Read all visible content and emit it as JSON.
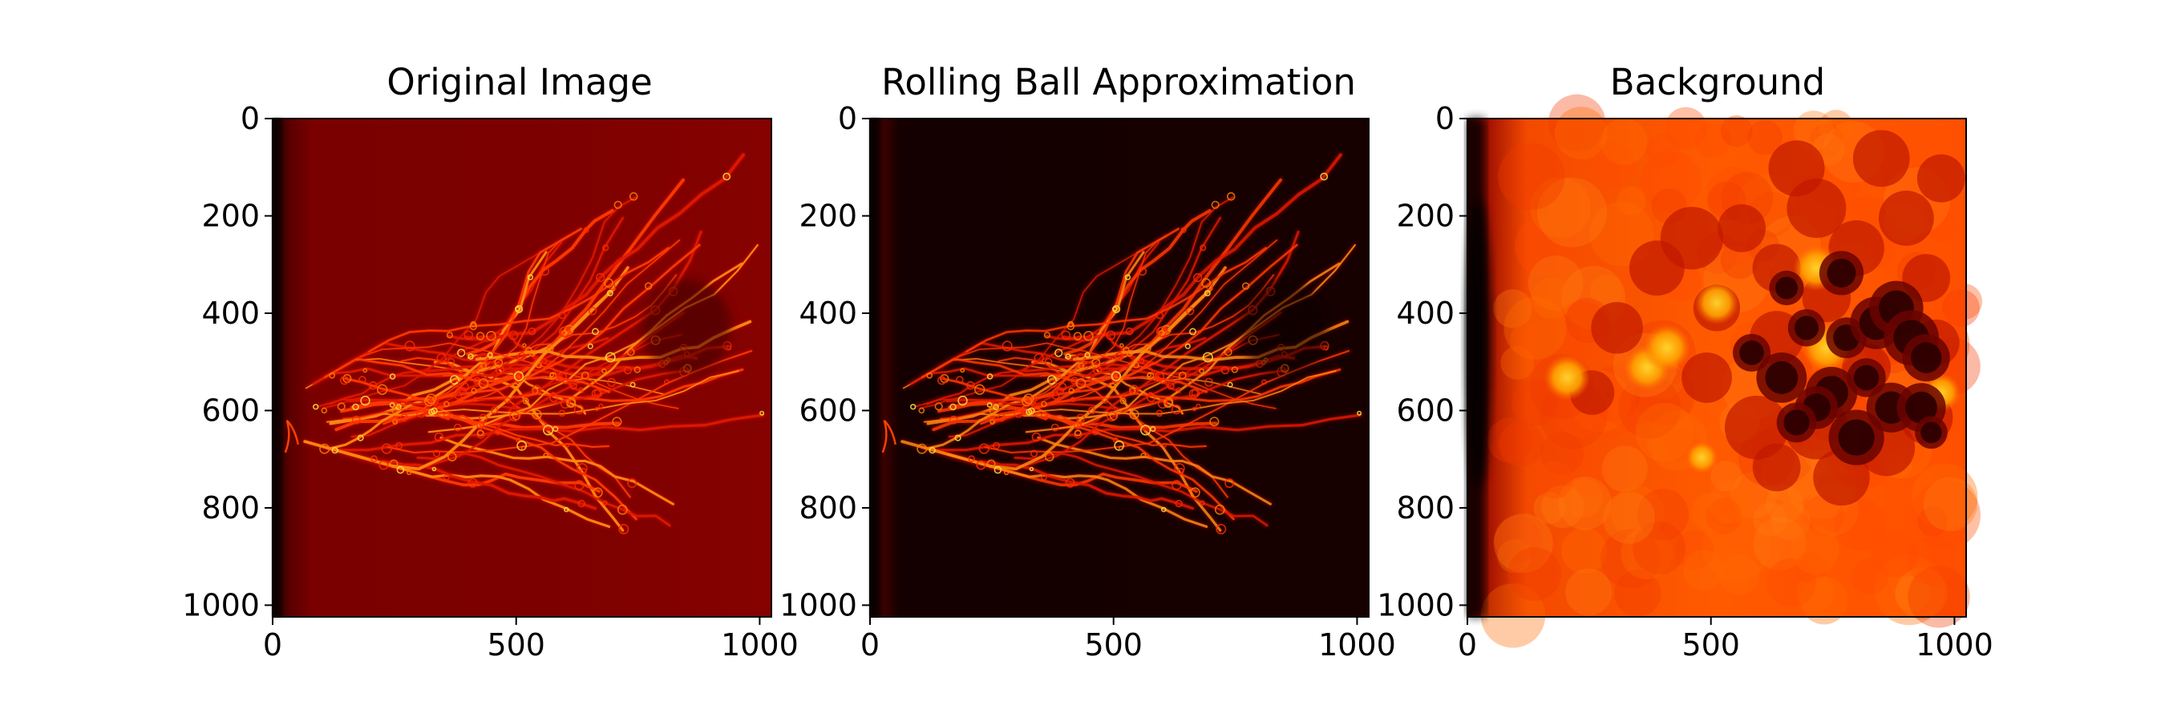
{
  "figure": {
    "panels": [
      {
        "id": "original",
        "title": "Original Image",
        "x_ticks": [
          "0",
          "500",
          "1000"
        ],
        "y_ticks": [
          "0",
          "200",
          "400",
          "600",
          "800",
          "1000"
        ],
        "colormap": "hot",
        "background_level": 0.25
      },
      {
        "id": "rolling",
        "title": "Rolling Ball Approximation",
        "x_ticks": [
          "0",
          "500",
          "1000"
        ],
        "y_ticks": [
          "0",
          "200",
          "400",
          "600",
          "800",
          "1000"
        ],
        "colormap": "hot",
        "background_level": 0.03
      },
      {
        "id": "background",
        "title": "Background",
        "x_ticks": [
          "0",
          "500",
          "1000"
        ],
        "y_ticks": [
          "0",
          "200",
          "400",
          "600",
          "800",
          "1000"
        ],
        "colormap": "hot",
        "background_level": 0.62
      }
    ],
    "colors": {
      "axis": "#000000",
      "hot_dark": "#0b0000",
      "hot_red": "#e01000",
      "hot_orange": "#ff5a00",
      "hot_yellow": "#ffff60"
    }
  }
}
